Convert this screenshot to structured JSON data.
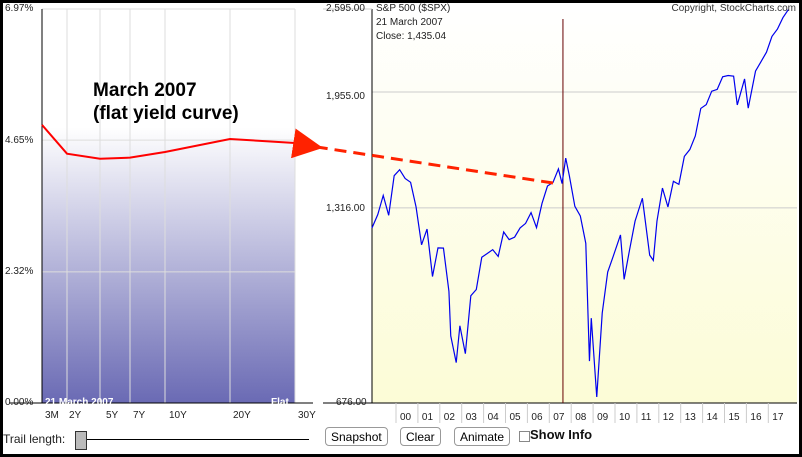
{
  "yield_chart": {
    "y_ticks": [
      "6.97%",
      "4.65%",
      "2.32%",
      "0.00%"
    ],
    "y_tick_values": [
      6.97,
      4.65,
      2.32,
      0
    ],
    "maturities": [
      "3M",
      "2Y",
      "5Y",
      "7Y",
      "10Y",
      "20Y",
      "30Y"
    ],
    "yields": [
      4.92,
      4.41,
      4.32,
      4.34,
      4.44,
      4.67,
      4.6
    ],
    "ylim": [
      0,
      6.97
    ],
    "date_label": "21  March 2007",
    "shape_label": "Flat",
    "line_color": "#ff0000"
  },
  "annotation": {
    "line1": "March 2007",
    "line2": "(flat yield curve)",
    "arrow_color": "#ff2200"
  },
  "spx_chart": {
    "title": "S&P 500 ($SPX)",
    "copyright": "Copyright, StockCharts.com",
    "date": "21  March 2007",
    "close": "Close: 1,435.04",
    "scale": "log",
    "ylim": [
      676,
      2595
    ],
    "y_ticks": [
      "2,595.00",
      "1,955.00",
      "1,316.00",
      "676.00"
    ],
    "y_tick_values": [
      2595,
      1955,
      1316,
      676
    ],
    "x_ticks": [
      "00",
      "01",
      "02",
      "03",
      "04",
      "05",
      "06",
      "07",
      "08",
      "09",
      "10",
      "11",
      "12",
      "13",
      "14",
      "15",
      "16",
      "17"
    ],
    "selected_date": "2007-03",
    "line_color": "#0000ee",
    "series": [
      [
        "1998-11",
        1229
      ],
      [
        "1999-03",
        1286
      ],
      [
        "1999-06",
        1373
      ],
      [
        "1999-09",
        1283
      ],
      [
        "1999-12",
        1469
      ],
      [
        "2000-03",
        1499
      ],
      [
        "2000-06",
        1455
      ],
      [
        "2000-09",
        1436
      ],
      [
        "2000-12",
        1320
      ],
      [
        "2001-03",
        1160
      ],
      [
        "2001-06",
        1224
      ],
      [
        "2001-09",
        1041
      ],
      [
        "2001-12",
        1148
      ],
      [
        "2002-03",
        1147
      ],
      [
        "2002-06",
        990
      ],
      [
        "2002-07",
        850
      ],
      [
        "2002-10",
        776
      ],
      [
        "2002-12",
        880
      ],
      [
        "2003-03",
        800
      ],
      [
        "2003-06",
        975
      ],
      [
        "2003-09",
        996
      ],
      [
        "2003-12",
        1112
      ],
      [
        "2004-03",
        1126
      ],
      [
        "2004-06",
        1141
      ],
      [
        "2004-09",
        1115
      ],
      [
        "2004-12",
        1212
      ],
      [
        "2005-03",
        1181
      ],
      [
        "2005-06",
        1191
      ],
      [
        "2005-09",
        1229
      ],
      [
        "2005-12",
        1248
      ],
      [
        "2006-03",
        1295
      ],
      [
        "2006-06",
        1230
      ],
      [
        "2006-09",
        1336
      ],
      [
        "2006-12",
        1418
      ],
      [
        "2007-03",
        1435
      ],
      [
        "2007-06",
        1503
      ],
      [
        "2007-08",
        1430
      ],
      [
        "2007-10",
        1560
      ],
      [
        "2007-12",
        1468
      ],
      [
        "2008-03",
        1323
      ],
      [
        "2008-06",
        1280
      ],
      [
        "2008-09",
        1166
      ],
      [
        "2008-11",
        780
      ],
      [
        "2008-12",
        903
      ],
      [
        "2009-03",
        690
      ],
      [
        "2009-06",
        919
      ],
      [
        "2009-09",
        1057
      ],
      [
        "2009-12",
        1115
      ],
      [
        "2010-04",
        1200
      ],
      [
        "2010-06",
        1031
      ],
      [
        "2010-09",
        1141
      ],
      [
        "2010-12",
        1258
      ],
      [
        "2011-04",
        1360
      ],
      [
        "2011-08",
        1120
      ],
      [
        "2011-10",
        1100
      ],
      [
        "2011-12",
        1258
      ],
      [
        "2012-03",
        1408
      ],
      [
        "2012-06",
        1320
      ],
      [
        "2012-09",
        1441
      ],
      [
        "2012-12",
        1426
      ],
      [
        "2013-03",
        1569
      ],
      [
        "2013-06",
        1606
      ],
      [
        "2013-09",
        1682
      ],
      [
        "2013-12",
        1848
      ],
      [
        "2014-03",
        1872
      ],
      [
        "2014-06",
        1960
      ],
      [
        "2014-09",
        1972
      ],
      [
        "2014-12",
        2059
      ],
      [
        "2015-03",
        2068
      ],
      [
        "2015-06",
        2063
      ],
      [
        "2015-08",
        1870
      ],
      [
        "2015-12",
        2044
      ],
      [
        "2016-02",
        1850
      ],
      [
        "2016-06",
        2099
      ],
      [
        "2016-09",
        2168
      ],
      [
        "2016-12",
        2239
      ],
      [
        "2017-03",
        2363
      ],
      [
        "2017-06",
        2423
      ],
      [
        "2017-09",
        2519
      ],
      [
        "2017-12",
        2590
      ]
    ]
  },
  "controls": {
    "trail_label": "Trail length:",
    "snapshot": "Snapshot",
    "clear": "Clear",
    "animate": "Animate",
    "show_info": "Show Info",
    "show_info_checked": false
  }
}
